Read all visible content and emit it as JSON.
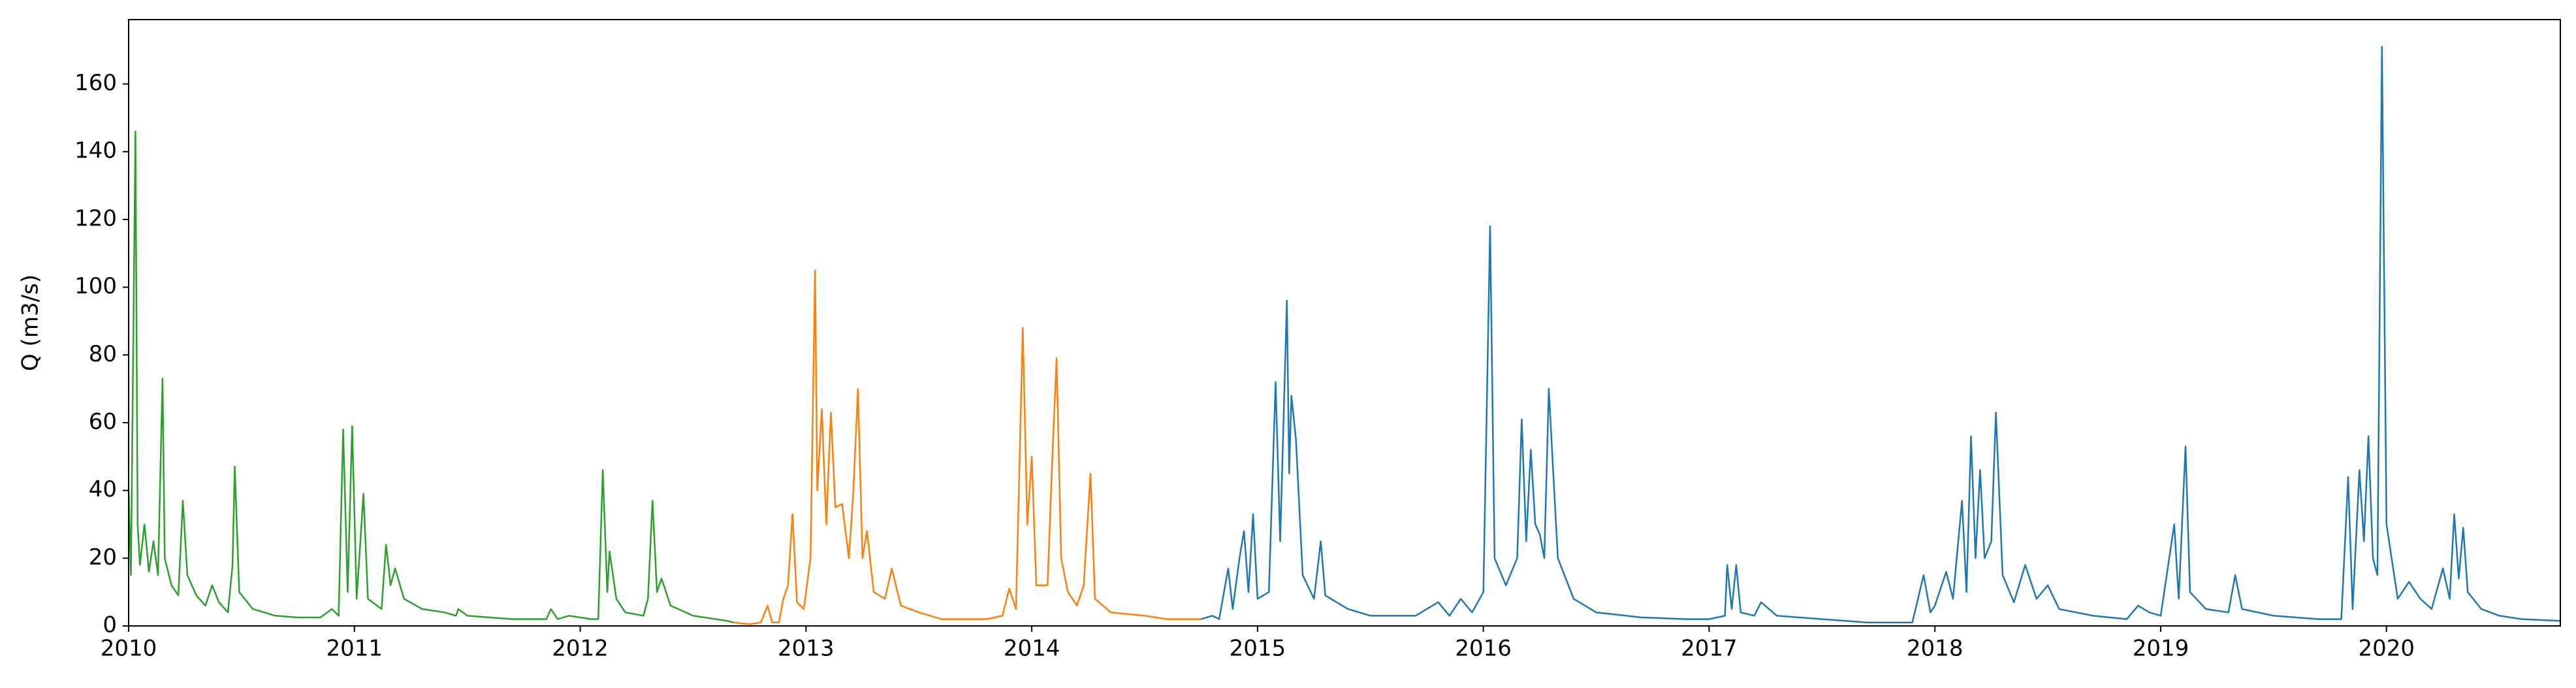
{
  "chart_data": {
    "type": "line",
    "ylabel": "Q (m3/s)",
    "xlim": [
      2010,
      2020.77
    ],
    "xticks": [
      2010,
      2011,
      2012,
      2013,
      2014,
      2015,
      2016,
      2017,
      2018,
      2019,
      2020
    ],
    "ylim": [
      0,
      179
    ],
    "yticks": [
      0,
      20,
      40,
      60,
      80,
      100,
      120,
      140,
      160
    ],
    "grid": false,
    "series": [
      {
        "color": "#2ca02c",
        "x": [
          2010.0,
          2010.01,
          2010.03,
          2010.04,
          2010.05,
          2010.07,
          2010.09,
          2010.11,
          2010.13,
          2010.15,
          2010.16,
          2010.19,
          2010.22,
          2010.24,
          2010.26,
          2010.3,
          2010.34,
          2010.37,
          2010.4,
          2010.44,
          2010.46,
          2010.47,
          2010.49,
          2010.55,
          2010.65,
          2010.75,
          2010.85,
          2010.9,
          2010.93,
          2010.95,
          2010.97,
          2010.99,
          2011.01,
          2011.04,
          2011.06,
          2011.12,
          2011.14,
          2011.16,
          2011.18,
          2011.22,
          2011.3,
          2011.4,
          2011.45,
          2011.46,
          2011.5,
          2011.7,
          2011.85,
          2011.87,
          2011.9,
          2011.95,
          2012.0,
          2012.05,
          2012.08,
          2012.1,
          2012.12,
          2012.13,
          2012.16,
          2012.2,
          2012.28,
          2012.3,
          2012.32,
          2012.34,
          2012.36,
          2012.4,
          2012.5,
          2012.65,
          2012.68
        ],
        "values": [
          40,
          15,
          146,
          30,
          18,
          30,
          16,
          25,
          15,
          73,
          20,
          12,
          9,
          37,
          15,
          9,
          6,
          12,
          7,
          4,
          18,
          47,
          10,
          5,
          3,
          2.5,
          2.5,
          5,
          3,
          58,
          10,
          59,
          8,
          39,
          8,
          5,
          24,
          12,
          17,
          8,
          5,
          4,
          3,
          5,
          3,
          2,
          2,
          5,
          2,
          3,
          2.5,
          2,
          2,
          46,
          10,
          22,
          8,
          4,
          3,
          8,
          37,
          10,
          14,
          6,
          3,
          1.5,
          1
        ]
      },
      {
        "color": "#ff7f0e",
        "x": [
          2012.68,
          2012.75,
          2012.8,
          2012.83,
          2012.85,
          2012.88,
          2012.9,
          2012.92,
          2012.94,
          2012.96,
          2012.99,
          2013.02,
          2013.04,
          2013.05,
          2013.07,
          2013.09,
          2013.11,
          2013.13,
          2013.16,
          2013.19,
          2013.21,
          2013.23,
          2013.25,
          2013.27,
          2013.3,
          2013.35,
          2013.38,
          2013.42,
          2013.5,
          2013.6,
          2013.8,
          2013.87,
          2013.9,
          2013.93,
          2013.96,
          2013.98,
          2014.0,
          2014.02,
          2014.07,
          2014.09,
          2014.11,
          2014.13,
          2014.16,
          2014.2,
          2014.23,
          2014.26,
          2014.28,
          2014.35,
          2014.5,
          2014.6,
          2014.75
        ],
        "values": [
          1,
          0.5,
          1,
          6,
          1,
          1,
          8,
          12,
          33,
          7,
          5,
          20,
          105,
          40,
          64,
          30,
          63,
          35,
          36,
          20,
          40,
          70,
          20,
          28,
          10,
          8,
          17,
          6,
          4,
          2,
          2,
          3,
          11,
          5,
          88,
          30,
          50,
          12,
          12,
          48,
          79,
          20,
          10,
          6,
          12,
          45,
          8,
          4,
          3,
          2,
          2
        ]
      },
      {
        "color": "#1f77b4",
        "x": [
          2014.75,
          2014.8,
          2014.83,
          2014.87,
          2014.89,
          2014.92,
          2014.94,
          2014.96,
          2014.98,
          2015.0,
          2015.05,
          2015.08,
          2015.1,
          2015.13,
          2015.14,
          2015.15,
          2015.17,
          2015.2,
          2015.25,
          2015.28,
          2015.3,
          2015.4,
          2015.5,
          2015.7,
          2015.8,
          2015.85,
          2015.9,
          2015.95,
          2016.0,
          2016.03,
          2016.05,
          2016.1,
          2016.15,
          2016.17,
          2016.19,
          2016.21,
          2016.23,
          2016.25,
          2016.27,
          2016.29,
          2016.31,
          2016.33,
          2016.4,
          2016.5,
          2016.7,
          2016.9,
          2017.0,
          2017.07,
          2017.08,
          2017.1,
          2017.12,
          2017.14,
          2017.2,
          2017.23,
          2017.3,
          2017.5,
          2017.7,
          2017.9,
          2017.95,
          2017.98,
          2018.0,
          2018.05,
          2018.08,
          2018.12,
          2018.14,
          2018.16,
          2018.18,
          2018.2,
          2018.22,
          2018.25,
          2018.27,
          2018.3,
          2018.35,
          2018.4,
          2018.45,
          2018.5,
          2018.55,
          2018.7,
          2018.85,
          2018.9,
          2018.95,
          2019.0,
          2019.06,
          2019.08,
          2019.11,
          2019.13,
          2019.2,
          2019.3,
          2019.33,
          2019.36,
          2019.5,
          2019.7,
          2019.8,
          2019.83,
          2019.85,
          2019.88,
          2019.9,
          2019.92,
          2019.94,
          2019.96,
          2019.98,
          2020.0,
          2020.05,
          2020.1,
          2020.15,
          2020.2,
          2020.25,
          2020.28,
          2020.3,
          2020.32,
          2020.34,
          2020.36,
          2020.42,
          2020.5,
          2020.6,
          2020.77
        ],
        "values": [
          2,
          3,
          2,
          17,
          5,
          20,
          28,
          10,
          33,
          8,
          10,
          72,
          25,
          96,
          45,
          68,
          55,
          15,
          8,
          25,
          9,
          5,
          3,
          3,
          7,
          3,
          8,
          4,
          10,
          118,
          20,
          12,
          20,
          61,
          25,
          52,
          30,
          27,
          20,
          70,
          45,
          20,
          8,
          4,
          2.5,
          2,
          2,
          3,
          18,
          5,
          18,
          4,
          3,
          7,
          3,
          2,
          1,
          1,
          15,
          4,
          6,
          16,
          8,
          37,
          10,
          56,
          20,
          46,
          20,
          25,
          63,
          15,
          7,
          18,
          8,
          12,
          5,
          3,
          2,
          6,
          4,
          3,
          30,
          8,
          53,
          10,
          5,
          4,
          15,
          5,
          3,
          2,
          2,
          44,
          5,
          46,
          25,
          56,
          20,
          15,
          171,
          30,
          8,
          13,
          8,
          5,
          17,
          8,
          33,
          14,
          29,
          10,
          5,
          3,
          2,
          1.5
        ]
      }
    ]
  }
}
